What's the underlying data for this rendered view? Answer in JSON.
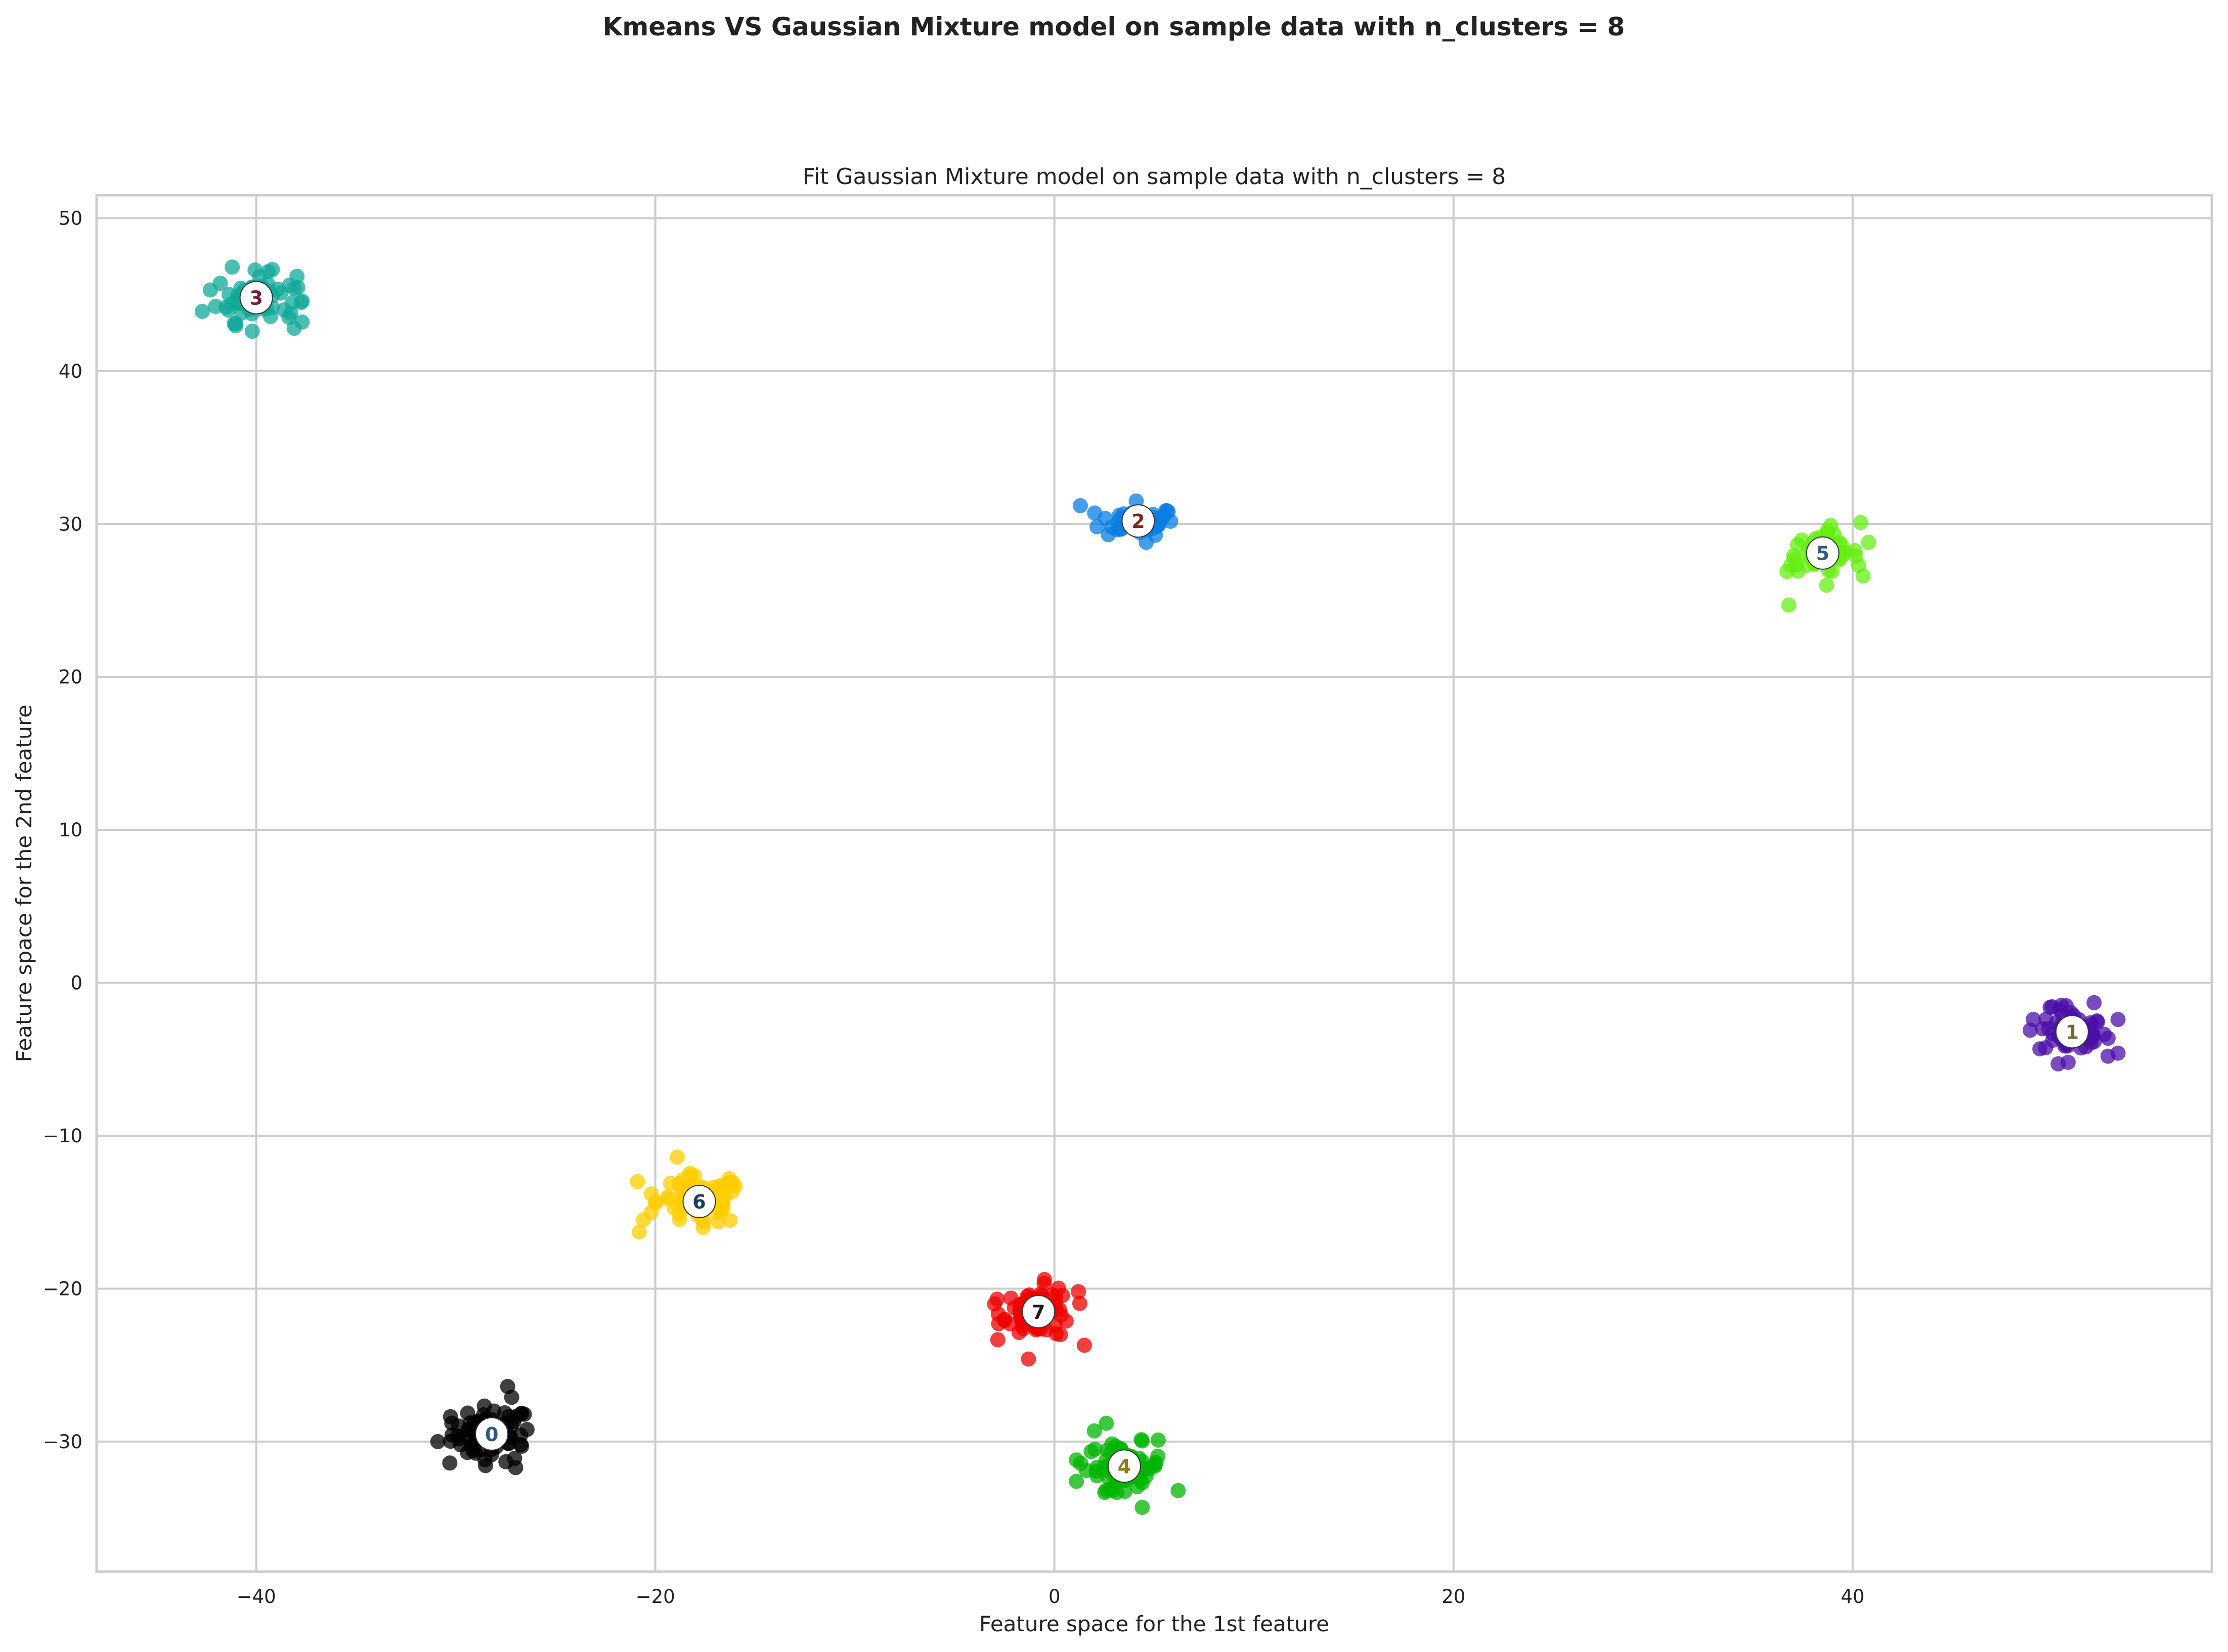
{
  "chart_data": {
    "type": "scatter",
    "suptitle": "Kmeans VS Gaussian Mixture model on sample data with n_clusters = 8",
    "title": "Fit Gaussian Mixture model on sample data with n_clusters = 8",
    "xlabel": "Feature space for the 1st feature",
    "ylabel": "Feature space for the 2nd feature",
    "xlim": [
      -48,
      58
    ],
    "ylim": [
      -38.5,
      51.5
    ],
    "xticks": [
      -40,
      -20,
      0,
      20,
      40
    ],
    "xtick_labels": [
      "−40",
      "−20",
      "0",
      "20",
      "40"
    ],
    "yticks": [
      -30,
      -20,
      -10,
      0,
      10,
      20,
      30,
      40,
      50
    ],
    "ytick_labels": [
      "−30",
      "−20",
      "−10",
      "0",
      "10",
      "20",
      "30",
      "40",
      "50"
    ],
    "grid": true,
    "legend": false,
    "clusters": [
      {
        "label": "0",
        "center": [
          -28.2,
          -29.5
        ],
        "color": "#000000",
        "label_color": "#2a5a7a",
        "spread": [
          1.0,
          0.9
        ],
        "points": 70,
        "outliers": [
          [
            -30.9,
            -30.0
          ],
          [
            -30.3,
            -31.4
          ],
          [
            -30.2,
            -28.8
          ],
          [
            -26.7,
            -30.3
          ],
          [
            -27.4,
            -26.4
          ],
          [
            -27.0,
            -31.7
          ],
          [
            -27.2,
            -27.1
          ]
        ]
      },
      {
        "label": "1",
        "center": [
          51.0,
          -3.2
        ],
        "color": "#4b0fa8",
        "label_color": "#6b6b3a",
        "spread": [
          0.85,
          0.75
        ],
        "points": 55,
        "outliers": [
          [
            48.9,
            -3.1
          ],
          [
            50.3,
            -5.3
          ],
          [
            50.8,
            -5.2
          ],
          [
            52.8,
            -4.8
          ],
          [
            53.3,
            -4.6
          ],
          [
            53.3,
            -2.4
          ],
          [
            52.1,
            -1.3
          ],
          [
            50.7,
            -1.5
          ],
          [
            49.9,
            -1.6
          ]
        ]
      },
      {
        "label": "2",
        "center": [
          4.2,
          30.2
        ],
        "color": "#0a7de0",
        "label_color": "#7a2a1a",
        "spread": [
          0.95,
          0.45
        ],
        "points": 55,
        "outliers": [
          [
            1.3,
            31.2
          ],
          [
            4.6,
            28.8
          ],
          [
            4.1,
            31.5
          ],
          [
            5.7,
            30.8
          ],
          [
            2.7,
            29.3
          ]
        ]
      },
      {
        "label": "3",
        "center": [
          -40.0,
          44.8
        ],
        "color": "#12a898",
        "label_color": "#7a1a3a",
        "spread": [
          1.0,
          0.8
        ],
        "points": 60,
        "outliers": [
          [
            -42.7,
            43.9
          ],
          [
            -41.1,
            43.1
          ],
          [
            -38.1,
            42.8
          ],
          [
            -40.2,
            42.6
          ],
          [
            -41.2,
            46.8
          ],
          [
            -38.1,
            45.4
          ],
          [
            -42.3,
            45.3
          ],
          [
            -39.4,
            46.5
          ],
          [
            -38.6,
            44.0
          ]
        ]
      },
      {
        "label": "4",
        "center": [
          3.5,
          -31.6
        ],
        "color": "#00b400",
        "label_color": "#8a7a1a",
        "spread": [
          0.95,
          0.75
        ],
        "points": 60,
        "outliers": [
          [
            2.6,
            -28.8
          ],
          [
            2.0,
            -29.3
          ],
          [
            6.2,
            -33.2
          ],
          [
            4.4,
            -34.3
          ],
          [
            1.1,
            -31.2
          ],
          [
            1.1,
            -32.6
          ],
          [
            5.2,
            -29.9
          ],
          [
            2.8,
            -33.1
          ]
        ]
      },
      {
        "label": "5",
        "center": [
          38.5,
          28.1
        ],
        "color": "#66ee11",
        "label_color": "#3a5a7a",
        "spread": [
          0.9,
          0.65
        ],
        "points": 55,
        "outliers": [
          [
            36.8,
            24.7
          ],
          [
            40.4,
            30.1
          ],
          [
            40.8,
            28.8
          ],
          [
            40.3,
            27.3
          ],
          [
            36.9,
            27.3
          ],
          [
            38.7,
            26.0
          ],
          [
            38.9,
            29.9
          ]
        ]
      },
      {
        "label": "6",
        "center": [
          -17.8,
          -14.3
        ],
        "color": "#ffcc00",
        "label_color": "#1a3a6a",
        "spread": [
          1.05,
          0.8
        ],
        "points": 75,
        "outliers": [
          [
            -18.9,
            -11.4
          ],
          [
            -20.9,
            -13.0
          ],
          [
            -20.8,
            -16.3
          ],
          [
            -20.6,
            -15.5
          ],
          [
            -16.0,
            -13.3
          ],
          [
            -16.3,
            -12.8
          ],
          [
            -17.6,
            -16.0
          ],
          [
            -20.2,
            -13.8
          ]
        ]
      },
      {
        "label": "7",
        "center": [
          -0.8,
          -21.5
        ],
        "color": "#ee0000",
        "label_color": "#1a1a1a",
        "spread": [
          0.9,
          0.8
        ],
        "points": 60,
        "outliers": [
          [
            -3.0,
            -21.0
          ],
          [
            -1.3,
            -24.6
          ],
          [
            1.5,
            -23.7
          ],
          [
            1.2,
            -20.2
          ],
          [
            -0.5,
            -19.4
          ],
          [
            -2.5,
            -22.0
          ],
          [
            0.3,
            -23.0
          ]
        ]
      }
    ]
  }
}
